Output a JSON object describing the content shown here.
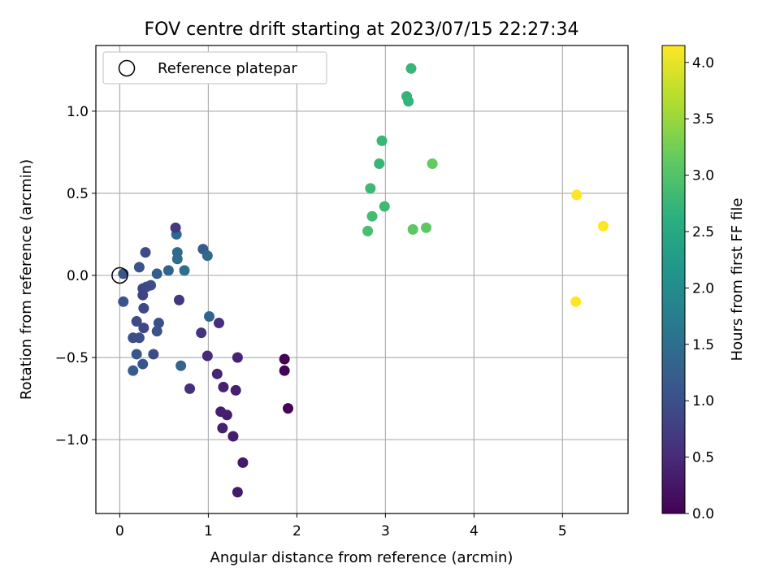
{
  "chart_data": {
    "type": "scatter",
    "title": "FOV centre drift starting at 2023/07/15 22:27:34",
    "xlabel": "Angular distance from reference (arcmin)",
    "ylabel": "Rotation from reference (arcmin)",
    "xlim": [
      -0.27,
      5.74
    ],
    "ylim": [
      -1.45,
      1.4
    ],
    "x_ticks": [
      0,
      1,
      2,
      3,
      4,
      5
    ],
    "x_tick_labels": [
      "0",
      "1",
      "2",
      "3",
      "4",
      "5"
    ],
    "y_ticks": [
      -1.0,
      -0.5,
      0.0,
      0.5,
      1.0
    ],
    "y_tick_labels": [
      "−1.0",
      "−0.5",
      "0.0",
      "0.5",
      "1.0"
    ],
    "grid": true,
    "legend": {
      "placement": "top-left",
      "entries": [
        "Reference platepar"
      ]
    },
    "reference_point": {
      "x": 0.0,
      "y": 0.0,
      "marker": "open-circle"
    },
    "colorbar": {
      "label": "Hours from first FF file",
      "colormap": "viridis",
      "range": [
        0.0,
        4.15
      ],
      "ticks": [
        0.0,
        0.5,
        1.0,
        1.5,
        2.0,
        2.5,
        3.0,
        3.5,
        4.0
      ],
      "tick_labels": [
        "0.0",
        "0.5",
        "1.0",
        "1.5",
        "2.0",
        "2.5",
        "3.0",
        "3.5",
        "4.0"
      ]
    },
    "series": [
      {
        "points": [
          {
            "x": 1.86,
            "y": -0.51,
            "c": 0.0
          },
          {
            "x": 1.86,
            "y": -0.58,
            "c": 0.03
          },
          {
            "x": 1.9,
            "y": -0.81,
            "c": 0.02
          },
          {
            "x": 1.33,
            "y": -1.32,
            "c": 0.3
          },
          {
            "x": 1.39,
            "y": -1.14,
            "c": 0.3
          },
          {
            "x": 1.28,
            "y": -0.98,
            "c": 0.32
          },
          {
            "x": 1.16,
            "y": -0.93,
            "c": 0.35
          },
          {
            "x": 1.21,
            "y": -0.85,
            "c": 0.33
          },
          {
            "x": 1.14,
            "y": -0.83,
            "c": 0.37
          },
          {
            "x": 1.31,
            "y": -0.7,
            "c": 0.35
          },
          {
            "x": 1.17,
            "y": -0.68,
            "c": 0.4
          },
          {
            "x": 1.1,
            "y": -0.6,
            "c": 0.42
          },
          {
            "x": 1.33,
            "y": -0.5,
            "c": 0.4
          },
          {
            "x": 0.99,
            "y": -0.49,
            "c": 0.5
          },
          {
            "x": 0.92,
            "y": -0.35,
            "c": 0.6
          },
          {
            "x": 1.12,
            "y": -0.29,
            "c": 0.55
          },
          {
            "x": 0.79,
            "y": -0.69,
            "c": 0.55
          },
          {
            "x": 0.67,
            "y": -0.15,
            "c": 0.65
          },
          {
            "x": 0.69,
            "y": -0.55,
            "c": 1.35
          },
          {
            "x": 1.01,
            "y": -0.25,
            "c": 1.35
          },
          {
            "x": 0.94,
            "y": 0.16,
            "c": 1.2
          },
          {
            "x": 0.99,
            "y": 0.12,
            "c": 1.4
          },
          {
            "x": 0.73,
            "y": 0.03,
            "c": 1.5
          },
          {
            "x": 0.65,
            "y": 0.1,
            "c": 1.45
          },
          {
            "x": 0.65,
            "y": 0.14,
            "c": 1.45
          },
          {
            "x": 0.64,
            "y": 0.25,
            "c": 1.4
          },
          {
            "x": 0.63,
            "y": 0.29,
            "c": 0.7
          },
          {
            "x": 0.55,
            "y": 0.03,
            "c": 1.3
          },
          {
            "x": 0.42,
            "y": 0.01,
            "c": 1.2
          },
          {
            "x": 0.35,
            "y": -0.06,
            "c": 1.0
          },
          {
            "x": 0.3,
            "y": -0.07,
            "c": 0.95
          },
          {
            "x": 0.26,
            "y": -0.08,
            "c": 0.9
          },
          {
            "x": 0.26,
            "y": -0.12,
            "c": 0.85
          },
          {
            "x": 0.29,
            "y": 0.14,
            "c": 0.95
          },
          {
            "x": 0.22,
            "y": 0.05,
            "c": 1.05
          },
          {
            "x": 0.04,
            "y": 0.01,
            "c": 1.1
          },
          {
            "x": 0.04,
            "y": -0.16,
            "c": 1.05
          },
          {
            "x": 0.27,
            "y": -0.2,
            "c": 0.9
          },
          {
            "x": 0.19,
            "y": -0.28,
            "c": 0.95
          },
          {
            "x": 0.44,
            "y": -0.29,
            "c": 1.0
          },
          {
            "x": 0.42,
            "y": -0.34,
            "c": 1.05
          },
          {
            "x": 0.27,
            "y": -0.32,
            "c": 0.9
          },
          {
            "x": 0.15,
            "y": -0.38,
            "c": 1.0
          },
          {
            "x": 0.22,
            "y": -0.38,
            "c": 1.0
          },
          {
            "x": 0.19,
            "y": -0.48,
            "c": 1.1
          },
          {
            "x": 0.38,
            "y": -0.48,
            "c": 0.95
          },
          {
            "x": 0.26,
            "y": -0.54,
            "c": 1.1
          },
          {
            "x": 0.15,
            "y": -0.58,
            "c": 1.2
          },
          {
            "x": 2.8,
            "y": 0.27,
            "c": 2.9
          },
          {
            "x": 2.85,
            "y": 0.36,
            "c": 2.85
          },
          {
            "x": 2.83,
            "y": 0.53,
            "c": 2.8
          },
          {
            "x": 2.99,
            "y": 0.42,
            "c": 2.8
          },
          {
            "x": 3.31,
            "y": 0.28,
            "c": 3.1
          },
          {
            "x": 3.46,
            "y": 0.29,
            "c": 3.1
          },
          {
            "x": 3.53,
            "y": 0.68,
            "c": 3.15
          },
          {
            "x": 2.93,
            "y": 0.68,
            "c": 2.75
          },
          {
            "x": 2.96,
            "y": 0.82,
            "c": 2.75
          },
          {
            "x": 3.24,
            "y": 1.09,
            "c": 2.7
          },
          {
            "x": 3.26,
            "y": 1.06,
            "c": 2.7
          },
          {
            "x": 3.29,
            "y": 1.26,
            "c": 2.75
          },
          {
            "x": 5.16,
            "y": 0.49,
            "c": 4.15
          },
          {
            "x": 5.46,
            "y": 0.3,
            "c": 4.15
          },
          {
            "x": 5.15,
            "y": -0.16,
            "c": 4.15
          }
        ]
      }
    ]
  }
}
